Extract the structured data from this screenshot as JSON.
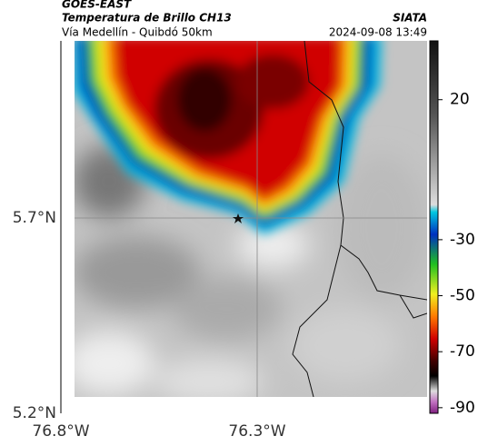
{
  "header": {
    "source": "GOES-EAST",
    "title": "Temperatura de Brillo CH13",
    "subtitle": "Vía Medellín - Quibdó 50km",
    "agency": "SIATA",
    "datetime": "2024-09-08 13:49"
  },
  "map": {
    "lat_labels": [
      "5.7°N",
      "5.2°N"
    ],
    "lon_labels": [
      "76.8°W",
      "76.3°W"
    ]
  },
  "colorbar": {
    "lim": [
      -92,
      41
    ],
    "ticks": [
      20,
      -30,
      -50,
      -70,
      -90
    ]
  }
}
